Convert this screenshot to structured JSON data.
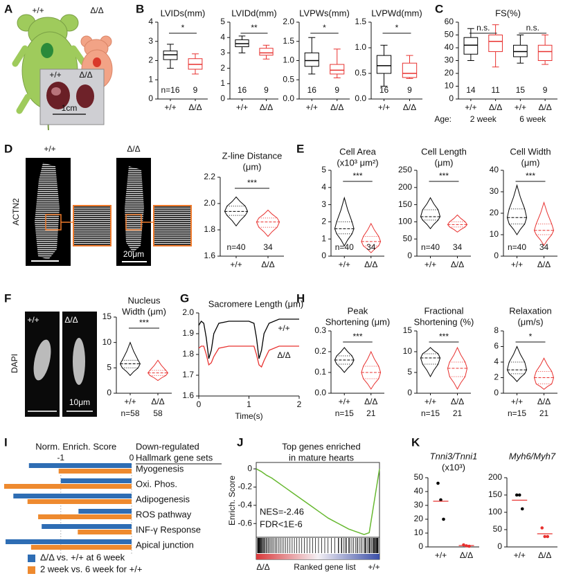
{
  "figure": {
    "panel_letters": [
      "A",
      "B",
      "C",
      "D",
      "E",
      "F",
      "G",
      "H",
      "I",
      "J",
      "K"
    ],
    "panel_a": {
      "genotype_labels": [
        "+/+",
        "Δ/Δ"
      ],
      "heart_labels": [
        "+/+",
        "Δ/Δ"
      ],
      "scale_bar": "1cm"
    },
    "panel_d": {
      "genotype_labels": [
        "+/+",
        "Δ/Δ"
      ],
      "stain": "ACTN2",
      "scale_bar": "20μm"
    },
    "panel_f": {
      "genotype_labels": [
        "+/+",
        "Δ/Δ"
      ],
      "stain": "DAPI",
      "scale_bar": "10μm"
    }
  },
  "chart_data": [
    {
      "type": "box",
      "title": "LVIDs(mm)",
      "categories": [
        "+/+",
        "Δ/Δ"
      ],
      "colors": [
        "#000000",
        "#e8312f"
      ],
      "stats": [
        {
          "min": 1.6,
          "q1": 2.05,
          "median": 2.3,
          "q3": 2.5,
          "max": 2.85
        },
        {
          "min": 1.3,
          "q1": 1.55,
          "median": 1.8,
          "q3": 2.1,
          "max": 2.35
        }
      ],
      "n_labels": [
        "n=16",
        "9"
      ],
      "significance": [
        "*"
      ],
      "ylim": [
        0,
        4
      ],
      "yticks": [
        0,
        1,
        2,
        3,
        4
      ]
    },
    {
      "type": "box",
      "title": "LVIDd(mm)",
      "categories": [
        "+/+",
        "Δ/Δ"
      ],
      "colors": [
        "#000000",
        "#e8312f"
      ],
      "stats": [
        {
          "min": 3.0,
          "q1": 3.4,
          "median": 3.6,
          "q3": 3.85,
          "max": 4.1
        },
        {
          "min": 2.6,
          "q1": 2.85,
          "median": 3.0,
          "q3": 3.3,
          "max": 3.5
        }
      ],
      "n_labels": [
        "16",
        "9"
      ],
      "significance": [
        "**"
      ],
      "ylim": [
        0,
        5
      ],
      "yticks": [
        0,
        1,
        2,
        3,
        4,
        5
      ]
    },
    {
      "type": "box",
      "title": "LVPWs(mm)",
      "categories": [
        "+/+",
        "Δ/Δ"
      ],
      "colors": [
        "#000000",
        "#e8312f"
      ],
      "stats": [
        {
          "min": 0.65,
          "q1": 0.85,
          "median": 1.0,
          "q3": 1.2,
          "max": 1.6
        },
        {
          "min": 0.55,
          "q1": 0.65,
          "median": 0.75,
          "q3": 0.9,
          "max": 1.3
        }
      ],
      "n_labels": [
        "16",
        "9"
      ],
      "significance": [
        "*"
      ],
      "ylim": [
        0,
        2
      ],
      "yticks": [
        {
          "value": 0,
          "label": "0.0"
        },
        0.5,
        {
          "value": 1,
          "label": "1.0"
        },
        1.5,
        {
          "value": 2,
          "label": "2.0"
        }
      ]
    },
    {
      "type": "box",
      "title": "LVPWd(mm)",
      "categories": [
        "+/+",
        "Δ/Δ"
      ],
      "colors": [
        "#000000",
        "#e8312f"
      ],
      "stats": [
        {
          "min": 0.25,
          "q1": 0.5,
          "median": 0.65,
          "q3": 0.85,
          "max": 1.05
        },
        {
          "min": 0.4,
          "q1": 0.42,
          "median": 0.5,
          "q3": 0.7,
          "max": 0.85
        }
      ],
      "n_labels": [
        "16",
        "9"
      ],
      "significance": [
        "*"
      ],
      "ylim": [
        0,
        1.5
      ],
      "yticks": [
        {
          "value": 0,
          "label": "0.0"
        },
        0.5,
        {
          "value": 1,
          "label": "1.0"
        },
        1.5
      ]
    },
    {
      "type": "box",
      "title": "FS(%)",
      "categories": [
        "+/+",
        "Δ/Δ",
        "+/+",
        "Δ/Δ"
      ],
      "colors": [
        "#000000",
        "#e8312f",
        "#000000",
        "#e8312f"
      ],
      "stats": [
        {
          "min": 30,
          "q1": 35,
          "median": 42,
          "q3": 48,
          "max": 55
        },
        {
          "min": 25,
          "q1": 37,
          "median": 45,
          "q3": 50,
          "max": 58
        },
        {
          "min": 28,
          "q1": 33,
          "median": 37,
          "q3": 42,
          "max": 50
        },
        {
          "min": 27,
          "q1": 30,
          "median": 37,
          "q3": 42,
          "max": 50
        }
      ],
      "n_labels": [
        "14",
        "11",
        "15",
        "9"
      ],
      "significance": [
        "n.s.",
        "n.s."
      ],
      "group_title": "Age:",
      "group_labels": [
        "2 week",
        "6 week"
      ],
      "ylim": [
        0,
        60
      ],
      "yticks": [
        0,
        10,
        20,
        30,
        40,
        50,
        60
      ]
    },
    {
      "type": "violin",
      "title": "Z-line Distance",
      "subtitle": "(μm)",
      "categories": [
        "+/+",
        "Δ/Δ"
      ],
      "colors": [
        "#000000",
        "#e8312f"
      ],
      "stats": [
        {
          "min": 1.83,
          "q1": 1.91,
          "median": 1.94,
          "q3": 1.98,
          "max": 2.05
        },
        {
          "min": 1.75,
          "q1": 1.82,
          "median": 1.86,
          "q3": 1.89,
          "max": 1.95
        }
      ],
      "n_labels": [
        "n=40",
        "34"
      ],
      "significance": [
        "***"
      ],
      "ylim": [
        1.6,
        2.2
      ],
      "yticks": [
        1.6,
        1.8,
        {
          "value": 2,
          "label": "2.0"
        },
        2.2
      ]
    },
    {
      "type": "violin",
      "title": "Cell Area",
      "subtitle": "(x10³ μm²)",
      "categories": [
        "+/+",
        "Δ/Δ"
      ],
      "colors": [
        "#000000",
        "#e8312f"
      ],
      "stats": [
        {
          "min": 0.6,
          "q1": 1.3,
          "median": 1.6,
          "q3": 2.0,
          "max": 3.4
        },
        {
          "min": 0.2,
          "q1": 0.6,
          "median": 0.85,
          "q3": 1.15,
          "max": 1.9
        }
      ],
      "n_labels": [
        "n=40",
        "34"
      ],
      "significance": [
        "***"
      ],
      "ylim": [
        0,
        5
      ],
      "yticks": [
        0,
        1,
        2,
        3,
        4,
        5
      ]
    },
    {
      "type": "violin",
      "title": "Cell Length",
      "subtitle": "(μm)",
      "categories": [
        "+/+",
        "Δ/Δ"
      ],
      "colors": [
        "#000000",
        "#e8312f"
      ],
      "stats": [
        {
          "min": 80,
          "q1": 105,
          "median": 115,
          "q3": 135,
          "max": 170
        },
        {
          "min": 70,
          "q1": 85,
          "median": 92,
          "q3": 100,
          "max": 120
        }
      ],
      "n_labels": [
        "n=40",
        "34"
      ],
      "significance": [
        "***"
      ],
      "ylim": [
        0,
        250
      ],
      "yticks": [
        0,
        50,
        100,
        150,
        200,
        250
      ]
    },
    {
      "type": "violin",
      "title": "Cell Width",
      "subtitle": "(μm)",
      "categories": [
        "+/+",
        "Δ/Δ"
      ],
      "colors": [
        "#000000",
        "#e8312f"
      ],
      "stats": [
        {
          "min": 10,
          "q1": 15,
          "median": 18,
          "q3": 22,
          "max": 33
        },
        {
          "min": 5,
          "q1": 10,
          "median": 12,
          "q3": 15,
          "max": 25
        }
      ],
      "n_labels": [
        "n=40",
        "34"
      ],
      "significance": [
        "***"
      ],
      "ylim": [
        0,
        40
      ],
      "yticks": [
        0,
        10,
        20,
        30,
        40
      ]
    },
    {
      "type": "violin",
      "title": "Nucleus",
      "subtitle": "Width (μm)",
      "categories": [
        "+/+",
        "Δ/Δ"
      ],
      "colors": [
        "#000000",
        "#e8312f"
      ],
      "stats": [
        {
          "min": 3.5,
          "q1": 5,
          "median": 5.8,
          "q3": 6.5,
          "max": 10
        },
        {
          "min": 2.5,
          "q1": 3.5,
          "median": 4,
          "q3": 4.5,
          "max": 6.5
        }
      ],
      "n_labels": [
        "n=58",
        "58"
      ],
      "significance": [
        "***"
      ],
      "ylim": [
        0,
        15
      ],
      "yticks": [
        0,
        5,
        10,
        15
      ]
    },
    {
      "type": "line",
      "title": "Sacromere Length (μm)",
      "xlabel": "Time(s)",
      "x": [
        0,
        0.05,
        0.1,
        0.15,
        0.2,
        0.25,
        0.3,
        0.4,
        0.6,
        0.8,
        1.0,
        1.1,
        1.15,
        1.2,
        1.25,
        1.3,
        1.4,
        1.6,
        1.8,
        2.0
      ],
      "series": [
        {
          "name": "+/+",
          "color": "#000000",
          "values": [
            1.94,
            1.96,
            1.95,
            1.88,
            1.78,
            1.82,
            1.9,
            1.95,
            1.96,
            1.96,
            1.96,
            1.95,
            1.88,
            1.78,
            1.82,
            1.9,
            1.95,
            1.97,
            1.97,
            1.97
          ]
        },
        {
          "name": "Δ/Δ",
          "color": "#e8312f",
          "values": [
            1.83,
            1.84,
            1.84,
            1.8,
            1.75,
            1.76,
            1.79,
            1.83,
            1.84,
            1.84,
            1.84,
            1.84,
            1.8,
            1.75,
            1.74,
            1.77,
            1.82,
            1.84,
            1.84,
            1.84
          ]
        }
      ],
      "xlim": [
        0,
        2
      ],
      "xticks": [
        0,
        1,
        2
      ],
      "ylim": [
        1.6,
        2.0
      ],
      "yticks": [
        1.6,
        1.7,
        1.8,
        1.9,
        {
          "value": 2,
          "label": "2.0"
        }
      ]
    },
    {
      "type": "violin",
      "title": "Peak",
      "subtitle": "Shortening (μm)",
      "categories": [
        "+/+",
        "Δ/Δ"
      ],
      "colors": [
        "#000000",
        "#e8312f"
      ],
      "stats": [
        {
          "min": 0.1,
          "q1": 0.14,
          "median": 0.16,
          "q3": 0.18,
          "max": 0.22
        },
        {
          "min": 0.02,
          "q1": 0.07,
          "median": 0.1,
          "q3": 0.13,
          "max": 0.2
        }
      ],
      "n_labels": [
        "n=15",
        "21"
      ],
      "significance": [
        "***"
      ],
      "ylim": [
        0,
        0.3
      ],
      "yticks": [
        {
          "value": 0,
          "label": "0.0"
        },
        0.1,
        0.2,
        0.3
      ]
    },
    {
      "type": "violin",
      "title": "Fractional",
      "subtitle": "Shortening (%)",
      "categories": [
        "+/+",
        "Δ/Δ"
      ],
      "colors": [
        "#000000",
        "#e8312f"
      ],
      "stats": [
        {
          "min": 4,
          "q1": 7,
          "median": 8.5,
          "q3": 9.5,
          "max": 11
        },
        {
          "min": 1,
          "q1": 4,
          "median": 6,
          "q3": 7.5,
          "max": 11
        }
      ],
      "n_labels": [
        "n=15",
        "21"
      ],
      "significance": [
        "***"
      ],
      "ylim": [
        0,
        15
      ],
      "yticks": [
        0,
        5,
        10,
        15
      ]
    },
    {
      "type": "violin",
      "title": "Relaxation",
      "subtitle": "(μm/s)",
      "categories": [
        "+/+",
        "Δ/Δ"
      ],
      "colors": [
        "#000000",
        "#e8312f"
      ],
      "stats": [
        {
          "min": 1.5,
          "q1": 2.5,
          "median": 3,
          "q3": 4,
          "max": 6
        },
        {
          "min": 0.5,
          "q1": 1.2,
          "median": 2,
          "q3": 2.8,
          "max": 4.5
        }
      ],
      "n_labels": [
        "n=15",
        "21"
      ],
      "significance": [
        "*"
      ],
      "ylim": [
        0,
        8
      ],
      "yticks": [
        0,
        2,
        4,
        6,
        8
      ]
    },
    {
      "type": "hbar",
      "title": "Norm. Enrich. Score",
      "category_title": [
        "Down-regulated",
        "Hallmark gene sets"
      ],
      "categories": [
        "Myogenesis",
        "Oxi. Phos.",
        "Adipogenesis",
        "ROS pathway",
        "INF-γ Response",
        "Apical junction"
      ],
      "series": [
        {
          "name": "Δ/Δ vs. +/+ at 6 week",
          "color": "#2e6db4",
          "values": [
            -1.45,
            -1.0,
            -1.67,
            -0.75,
            -1.27,
            -1.78
          ]
        },
        {
          "name": "2 week vs. 6 week for +/+",
          "color": "#ee8a2f",
          "values": [
            -1.03,
            -1.8,
            -1.47,
            -1.32,
            -0.76,
            -1.42
          ]
        }
      ],
      "xlim": [
        -1.8,
        0
      ],
      "xticks": [
        -1,
        0
      ],
      "grid": true
    },
    {
      "type": "gsea",
      "title": [
        "Top genes enriched",
        "in mature hearts"
      ],
      "ylabel": "Enrich. Score",
      "color": "#66b82f",
      "values": [
        0,
        -0.03,
        -0.07,
        -0.1,
        -0.14,
        -0.18,
        -0.22,
        -0.26,
        -0.3,
        -0.34,
        -0.38,
        -0.42,
        -0.46,
        -0.5,
        -0.54,
        -0.57,
        -0.6,
        -0.63,
        -0.66,
        -0.68,
        -0.7,
        -0.72,
        -0.7,
        -0.35,
        0
      ],
      "annotations": [
        "NES=-2.46",
        "FDR<1E-6"
      ],
      "xlabel": "Ranked gene list",
      "end_labels": [
        "Δ/Δ",
        "+/+"
      ],
      "ylim": [
        -0.75,
        0.07
      ],
      "yticks": [
        0,
        -0.2,
        -0.4,
        -0.6
      ]
    },
    {
      "type": "dot",
      "title": "Tnni3/Tnni1",
      "subtitle": "(x10³)",
      "categories": [
        "+/+",
        "Δ/Δ"
      ],
      "colors": [
        "#000000",
        "#e8312f"
      ],
      "mean_color": "#e8312f",
      "points": [
        [
          46,
          34,
          20
        ],
        [
          1.5,
          0.8,
          0.5
        ]
      ],
      "means": [
        33,
        1
      ],
      "ylim": [
        0,
        50
      ],
      "yticks": [
        0,
        10,
        20,
        30,
        40,
        50
      ]
    },
    {
      "type": "dot",
      "title": "Myh6/Myh7",
      "categories": [
        "+/+",
        "Δ/Δ"
      ],
      "colors": [
        "#000000",
        "#e8312f"
      ],
      "mean_color": "#e8312f",
      "points": [
        [
          150,
          150,
          110
        ],
        [
          55,
          30,
          30
        ]
      ],
      "means": [
        135,
        38
      ],
      "ylim": [
        0,
        200
      ],
      "yticks": [
        0,
        50,
        100,
        150,
        200
      ]
    }
  ]
}
